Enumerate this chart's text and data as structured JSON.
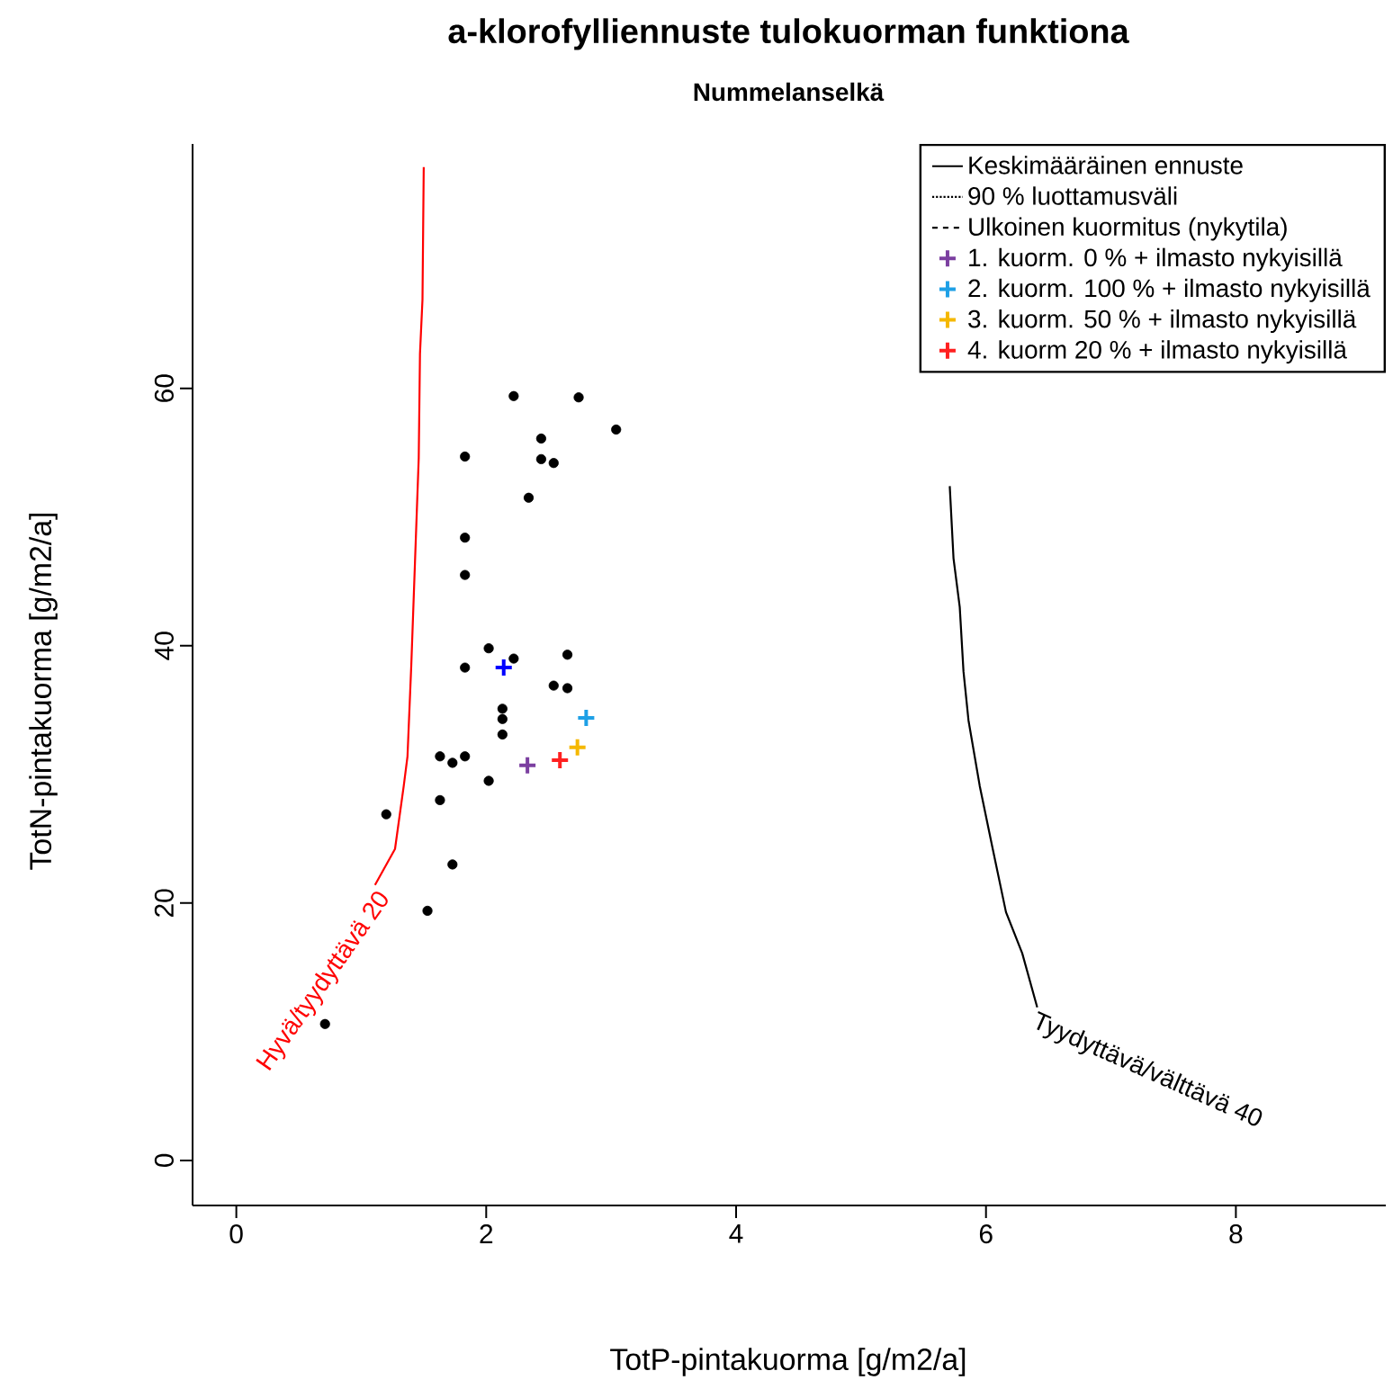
{
  "chart_data": {
    "type": "scatter",
    "title": "a-klorofylliennuste tulokuorman funktiona",
    "subtitle": "Nummelanselkä",
    "xlabel": "TotP-pintakuorma [g/m2/a]",
    "ylabel": "TotN-pintakuorma [g/m2/a]",
    "xlim": [
      -0.35,
      9.2
    ],
    "ylim": [
      -3.5,
      79
    ],
    "xticks": [
      0,
      2,
      4,
      6,
      8
    ],
    "yticks": [
      0,
      20,
      40,
      60
    ],
    "grid": false,
    "legend": "top right",
    "series": [
      {
        "name": "Keskimääräinen ennuste",
        "type": "line",
        "color": "#000000",
        "line_style": "solid",
        "marker": "none",
        "x": [
          5.71,
          5.74,
          5.79,
          5.82,
          5.86,
          5.95,
          6.05,
          6.16,
          6.29,
          6.41
        ],
        "values": [
          52.4,
          46.8,
          43.0,
          38.0,
          34.2,
          29.1,
          24.4,
          19.3,
          16.1,
          11.9
        ]
      },
      {
        "name": "90 % luottamusväli",
        "type": "line",
        "color": "#000000",
        "line_style": "dotted",
        "marker": "none"
      },
      {
        "name": "Ulkoinen kuormitus (nykytila)",
        "type": "line",
        "color": "#000000",
        "line_style": "dashed",
        "marker": "none"
      },
      {
        "name": "1. kuorm. 0 % + ilmasto nykyisillä",
        "color": "#7b3fa0",
        "marker": "cross",
        "x": [
          2.33
        ],
        "values": [
          30.7
        ]
      },
      {
        "name": "2. kuorm. 100 % + ilmasto nykyisillä",
        "color": "#1ea0e6",
        "marker": "cross",
        "x": [
          2.8
        ],
        "values": [
          34.4
        ]
      },
      {
        "name": "3. kuorm. 50 % + ilmasto nykyisillä",
        "color": "#f5b800",
        "marker": "cross",
        "x": [
          2.73
        ],
        "values": [
          32.1
        ]
      },
      {
        "name": "4. kuorm 20 % + ilmasto nykyisillä",
        "color": "#ff2020",
        "marker": "cross",
        "x": [
          2.59
        ],
        "values": [
          31.1
        ]
      },
      {
        "type": "line",
        "color": "#ff0000",
        "line_style": "solid",
        "marker": "none",
        "x": [
          1.5,
          1.49,
          1.47,
          1.46,
          1.43,
          1.4,
          1.37,
          1.34,
          1.27,
          1.11
        ],
        "values": [
          77.2,
          66.9,
          62.7,
          54.6,
          46.5,
          38.4,
          31.4,
          29.1,
          24.2,
          21.4
        ]
      },
      {
        "color": "#000000",
        "marker": "circle",
        "x": [
          2.22,
          2.74,
          3.04,
          2.44,
          2.44,
          2.54,
          1.83,
          2.34,
          1.83,
          1.83,
          2.02,
          2.22,
          1.83,
          2.65,
          2.54,
          2.65,
          2.13,
          2.13,
          2.13,
          1.63,
          1.73,
          1.83,
          2.02,
          1.63,
          1.2,
          1.73,
          1.53,
          0.71
        ],
        "values": [
          59.4,
          59.3,
          56.8,
          56.1,
          54.5,
          54.2,
          54.7,
          51.5,
          48.4,
          45.5,
          39.8,
          39.0,
          38.3,
          39.3,
          36.9,
          36.7,
          35.1,
          34.3,
          33.1,
          31.4,
          30.9,
          31.4,
          29.5,
          28.0,
          26.9,
          23.0,
          19.4,
          10.6
        ]
      },
      {
        "color": "#0000ff",
        "marker": "cross",
        "x": [
          2.14
        ],
        "values": [
          38.3
        ]
      }
    ],
    "annotations": [
      {
        "text": "Hyvä/tyydyttävä 20",
        "x": 1.11,
        "y": 21.4
      },
      {
        "text": "Tyydyttävä/välttävä 40",
        "x": 6.41,
        "y": 11.9
      }
    ]
  }
}
